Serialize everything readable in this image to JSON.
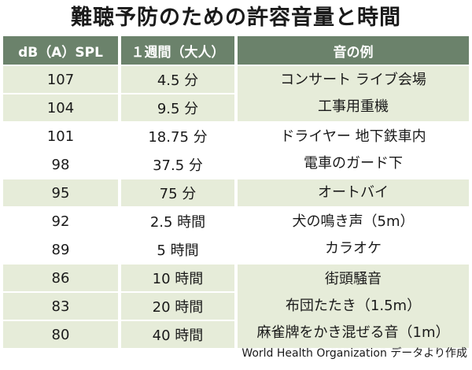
{
  "title": "難聴予防のための許容音量と時間",
  "headers": [
    "dB（A）SPL",
    "１週間（大人）",
    "音の例"
  ],
  "rows": [
    {
      "db": "107",
      "time": "4.5 分"
    },
    {
      "db": "104",
      "time": "9.5 分"
    },
    {
      "db": "101",
      "time": "18.75 分"
    },
    {
      "db": "98",
      "time": "37.5 分"
    },
    {
      "db": "95",
      "time": "75 分"
    },
    {
      "db": "92",
      "time": "2.5 時間"
    },
    {
      "db": "89",
      "time": "5 時間"
    },
    {
      "db": "86",
      "time": "10 時間"
    },
    {
      "db": "83",
      "time": "20 時間"
    },
    {
      "db": "80",
      "time": "40 時間"
    }
  ],
  "examples": [
    [
      "コンサート ライブ会場",
      "工事用重機"
    ],
    [
      "ドライヤー 地下鉄車内",
      "電車のガード下"
    ],
    [
      "オートバイ"
    ],
    [
      "犬の鳴き声（5m）",
      "カラオケ"
    ],
    [
      "街頭騒音",
      "布団たたき（1.5m）",
      "麻雀牌をかき混ぜる音（1m）"
    ]
  ],
  "footer": "World Health Organization データより作成",
  "colors": {
    "header": "#6b826b",
    "shade": "#e6ecd9"
  }
}
